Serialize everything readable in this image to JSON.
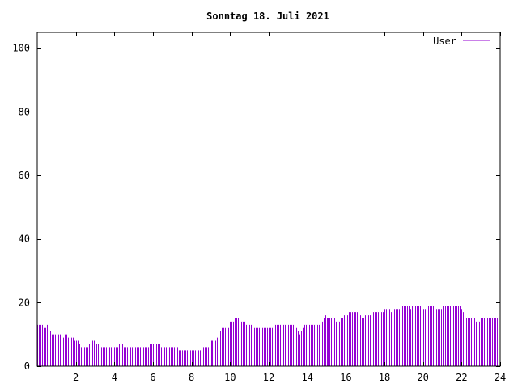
{
  "chart_data": {
    "type": "bar",
    "title": "Sonntag 18. Juli 2021",
    "xlabel": "",
    "ylabel": "",
    "xlim": [
      0,
      24
    ],
    "ylim": [
      0,
      105
    ],
    "x_ticks": [
      2,
      4,
      6,
      8,
      10,
      12,
      14,
      16,
      18,
      20,
      22,
      24
    ],
    "y_ticks": [
      0,
      20,
      40,
      60,
      80,
      100
    ],
    "grid": false,
    "legend": {
      "position": "top-right"
    },
    "series": [
      {
        "name": "User",
        "color": "#9400d3",
        "interval_minutes": 5,
        "values": [
          13,
          13,
          13,
          13,
          12,
          12,
          13,
          12,
          11,
          10,
          10,
          10,
          10,
          10,
          10,
          9,
          9,
          10,
          10,
          9,
          9,
          9,
          9,
          8,
          8,
          8,
          7,
          6,
          6,
          6,
          6,
          6,
          7,
          8,
          8,
          8,
          8,
          7,
          7,
          7,
          6,
          6,
          6,
          6,
          6,
          6,
          6,
          6,
          6,
          6,
          6,
          7,
          7,
          7,
          6,
          6,
          6,
          6,
          6,
          6,
          6,
          6,
          6,
          6,
          6,
          6,
          6,
          6,
          6,
          6,
          7,
          7,
          7,
          7,
          7,
          7,
          7,
          6,
          6,
          6,
          6,
          6,
          6,
          6,
          6,
          6,
          6,
          6,
          5,
          5,
          5,
          5,
          5,
          5,
          5,
          5,
          5,
          5,
          5,
          5,
          5,
          5,
          5,
          6,
          6,
          6,
          6,
          6,
          8,
          8,
          8,
          8,
          9,
          10,
          11,
          12,
          12,
          12,
          12,
          12,
          14,
          14,
          14,
          15,
          15,
          15,
          14,
          14,
          14,
          14,
          13,
          13,
          13,
          13,
          13,
          12,
          12,
          12,
          12,
          12,
          12,
          12,
          12,
          12,
          12,
          12,
          12,
          12,
          13,
          13,
          13,
          13,
          13,
          13,
          13,
          13,
          13,
          13,
          13,
          13,
          13,
          12,
          11,
          10,
          11,
          12,
          13,
          13,
          13,
          13,
          13,
          13,
          13,
          13,
          13,
          13,
          13,
          14,
          15,
          16,
          15,
          15,
          15,
          15,
          15,
          15,
          14,
          14,
          14,
          15,
          15,
          16,
          16,
          16,
          17,
          17,
          17,
          17,
          17,
          17,
          16,
          16,
          15,
          15,
          16,
          16,
          16,
          16,
          16,
          17,
          17,
          17,
          17,
          17,
          17,
          17,
          18,
          18,
          18,
          18,
          17,
          17,
          18,
          18,
          18,
          18,
          18,
          19,
          19,
          19,
          19,
          19,
          18,
          19,
          19,
          19,
          19,
          19,
          19,
          19,
          18,
          18,
          18,
          19,
          19,
          19,
          19,
          19,
          18,
          18,
          18,
          18,
          19,
          19,
          19,
          19,
          19,
          19,
          19,
          19,
          19,
          19,
          19,
          19,
          18,
          17,
          15,
          15,
          15,
          15,
          15,
          15,
          15,
          14,
          14,
          14,
          15,
          15,
          15,
          15,
          15,
          15,
          15,
          15,
          15,
          15,
          15,
          15
        ]
      }
    ]
  }
}
